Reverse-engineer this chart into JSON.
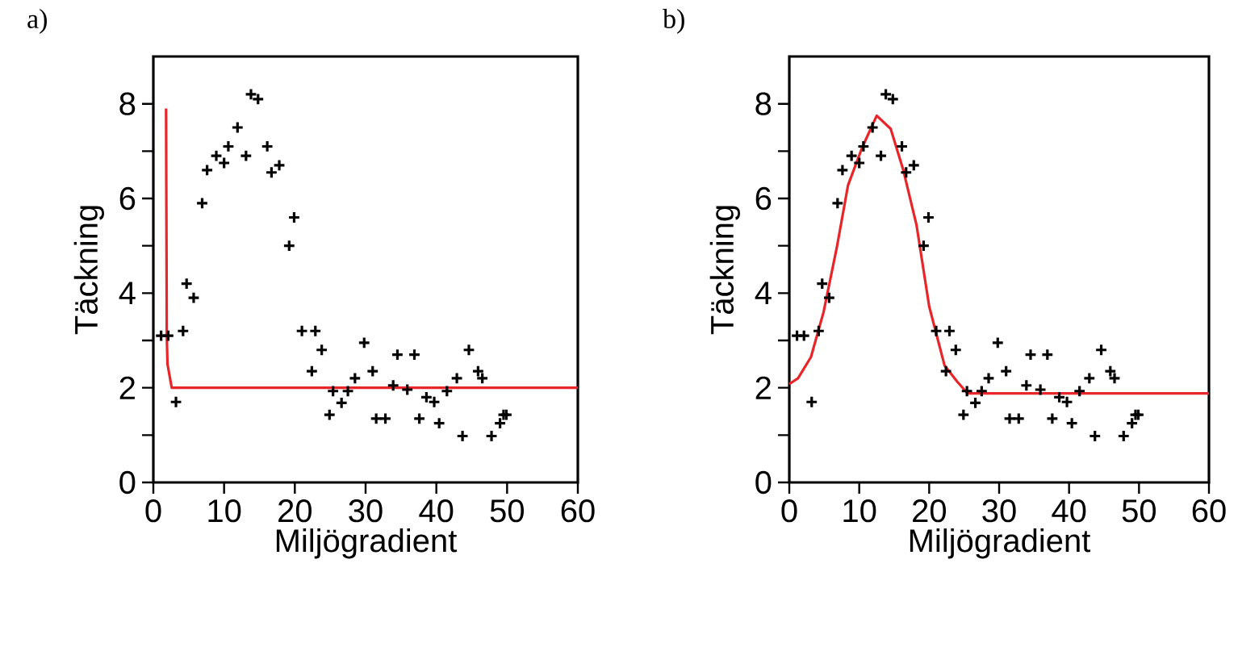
{
  "chart_data": [
    {
      "type": "scatter",
      "xlabel": "Miljögradient",
      "ylabel": "Täckning",
      "annotations": [
        "a)"
      ],
      "xlim": [
        0,
        60
      ],
      "ylim": [
        0,
        9
      ],
      "xticks": [
        0,
        10,
        20,
        30,
        40,
        50,
        60
      ],
      "yticks": [
        0,
        {
          "value": 1,
          "label": null
        },
        2,
        {
          "value": 3,
          "label": null
        },
        4,
        {
          "value": 5,
          "label": null
        },
        6,
        {
          "value": 7,
          "label": null
        },
        8
      ],
      "series": [
        {
          "marker": "cross",
          "color": "#000000",
          "x": [
            1.1,
            2.1,
            3.2,
            4.2,
            4.7,
            5.7,
            6.9,
            7.6,
            8.9,
            10.0,
            10.6,
            11.9,
            13.1,
            13.8,
            14.8,
            16.1,
            16.7,
            17.8,
            19.2,
            19.9,
            21.0,
            22.4,
            22.9,
            23.8,
            24.9,
            25.4,
            26.6,
            27.5,
            28.5,
            29.8,
            31.0,
            31.5,
            32.8,
            33.9,
            34.5,
            35.9,
            36.9,
            37.6,
            38.6,
            39.7,
            40.4,
            41.5,
            42.9,
            43.7,
            44.6,
            45.9,
            46.5,
            47.8,
            49.0,
            49.5,
            49.9
          ],
          "values": [
            3.1,
            3.1,
            1.7,
            3.2,
            4.2,
            3.9,
            5.9,
            6.6,
            6.9,
            6.75,
            7.1,
            7.5,
            6.9,
            8.2,
            8.1,
            7.1,
            6.55,
            6.7,
            5.0,
            5.6,
            3.2,
            2.35,
            3.2,
            2.8,
            1.43,
            1.93,
            1.68,
            1.93,
            2.2,
            2.95,
            2.35,
            1.35,
            1.35,
            2.05,
            2.7,
            1.96,
            2.7,
            1.35,
            1.8,
            1.7,
            1.25,
            1.93,
            2.2,
            0.98,
            2.8,
            2.35,
            2.2,
            0.98,
            1.25,
            1.43,
            1.43
          ]
        },
        {
          "type": "line",
          "marker": "none",
          "color": "#e8262a",
          "x": [
            1.8,
            1.9,
            2.0,
            2.6,
            60
          ],
          "values": [
            7.9,
            3.1,
            2.5,
            2.0,
            2.0
          ]
        }
      ]
    },
    {
      "type": "scatter",
      "xlabel": "Miljögradient",
      "ylabel": "Täckning",
      "annotations": [
        "b)"
      ],
      "xlim": [
        0,
        60
      ],
      "ylim": [
        0,
        9
      ],
      "xticks": [
        0,
        10,
        20,
        30,
        40,
        50,
        60
      ],
      "yticks": [
        0,
        {
          "value": 1,
          "label": null
        },
        2,
        {
          "value": 3,
          "label": null
        },
        4,
        {
          "value": 5,
          "label": null
        },
        6,
        {
          "value": 7,
          "label": null
        },
        8
      ],
      "series": [
        {
          "marker": "cross",
          "color": "#000000",
          "x": [
            1.1,
            2.1,
            3.2,
            4.2,
            4.7,
            5.7,
            6.9,
            7.6,
            8.9,
            10.0,
            10.6,
            11.9,
            13.1,
            13.8,
            14.8,
            16.1,
            16.7,
            17.8,
            19.2,
            19.9,
            21.0,
            22.4,
            22.9,
            23.8,
            24.9,
            25.4,
            26.6,
            27.5,
            28.5,
            29.8,
            31.0,
            31.5,
            32.8,
            33.9,
            34.5,
            35.9,
            36.9,
            37.6,
            38.6,
            39.7,
            40.4,
            41.5,
            42.9,
            43.7,
            44.6,
            45.9,
            46.5,
            47.8,
            49.0,
            49.5,
            49.9
          ],
          "values": [
            3.1,
            3.1,
            1.7,
            3.2,
            4.2,
            3.9,
            5.9,
            6.6,
            6.9,
            6.75,
            7.1,
            7.5,
            6.9,
            8.2,
            8.1,
            7.1,
            6.55,
            6.7,
            5.0,
            5.6,
            3.2,
            2.35,
            3.2,
            2.8,
            1.43,
            1.93,
            1.68,
            1.93,
            2.2,
            2.95,
            2.35,
            1.35,
            1.35,
            2.05,
            2.7,
            1.96,
            2.7,
            1.35,
            1.8,
            1.7,
            1.25,
            1.93,
            2.2,
            0.98,
            2.8,
            2.35,
            2.2,
            0.98,
            1.25,
            1.43,
            1.43
          ]
        },
        {
          "type": "line",
          "marker": "none",
          "color": "#e8262a",
          "x": [
            0,
            1.25,
            3.1,
            4.9,
            6.8,
            8.4,
            10.4,
            12.5,
            14.5,
            16.3,
            18.2,
            20.0,
            22.2,
            24.0,
            25.5,
            60
          ],
          "values": [
            2.08,
            2.2,
            2.65,
            3.6,
            4.97,
            6.28,
            7.07,
            7.75,
            7.47,
            6.6,
            5.43,
            3.72,
            2.47,
            2.13,
            1.88,
            1.88
          ]
        }
      ]
    }
  ]
}
